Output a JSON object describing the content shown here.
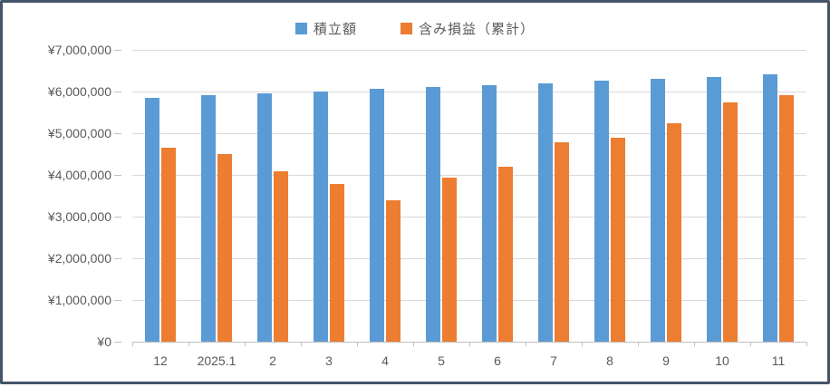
{
  "chart_data": {
    "type": "bar",
    "title": "",
    "categories": [
      "12",
      "2025.1",
      "2",
      "3",
      "4",
      "5",
      "6",
      "7",
      "8",
      "9",
      "10",
      "11"
    ],
    "series": [
      {
        "name": "積立額",
        "color": "#5B9BD5",
        "values": [
          5850000,
          5900000,
          5950000,
          6000000,
          6050000,
          6100000,
          6150000,
          6200000,
          6250000,
          6300000,
          6350000,
          6400000
        ]
      },
      {
        "name": "含み損益（累計）",
        "color": "#ED7D31",
        "values": [
          4650000,
          4500000,
          4080000,
          3780000,
          3380000,
          3920000,
          4200000,
          4780000,
          4880000,
          5240000,
          5730000,
          5910000
        ]
      }
    ],
    "y_axis": {
      "min": 0,
      "max": 7000000,
      "step": 1000000,
      "tick_labels": [
        "¥0",
        "¥1,000,000",
        "¥2,000,000",
        "¥3,000,000",
        "¥4,000,000",
        "¥5,000,000",
        "¥6,000,000",
        "¥7,000,000"
      ]
    },
    "x_axis": {
      "label": ""
    },
    "legend_position": "top-center",
    "grid": true,
    "colors": {
      "gridline": "#D9D9D9",
      "axis": "#BFBFBF",
      "label": "#595959",
      "border": "#44546A",
      "background": "#FFFFFF"
    }
  }
}
